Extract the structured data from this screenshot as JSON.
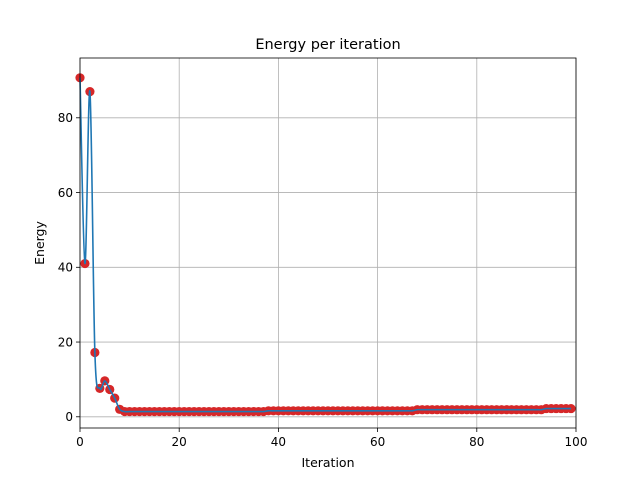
{
  "chart_data": {
    "type": "line",
    "title": "Energy per iteration",
    "xlabel": "Iteration",
    "ylabel": "Energy",
    "xlim": [
      0,
      100
    ],
    "ylim": [
      -3,
      96
    ],
    "xticks": [
      0,
      20,
      40,
      60,
      80,
      100
    ],
    "yticks": [
      0,
      20,
      40,
      60,
      80
    ],
    "grid": true,
    "line_color": "#1f77b4",
    "marker_color": "#d62728",
    "series": [
      {
        "x": [
          0,
          1,
          2,
          3,
          4,
          5,
          6,
          7,
          8,
          9,
          10,
          11,
          12,
          13,
          14,
          15,
          16,
          17,
          18,
          19,
          20,
          21,
          22,
          23,
          24,
          25,
          26,
          27,
          28,
          29,
          30,
          31,
          32,
          33,
          34,
          35,
          36,
          37,
          38,
          39,
          40,
          41,
          42,
          43,
          44,
          45,
          46,
          47,
          48,
          49,
          50,
          51,
          52,
          53,
          54,
          55,
          56,
          57,
          58,
          59,
          60,
          61,
          62,
          63,
          64,
          65,
          66,
          67,
          68,
          69,
          70,
          71,
          72,
          73,
          74,
          75,
          76,
          77,
          78,
          79,
          80,
          81,
          82,
          83,
          84,
          85,
          86,
          87,
          88,
          89,
          90,
          91,
          92,
          93,
          94,
          95,
          96,
          97,
          98,
          99
        ],
        "y": [
          90.7,
          41.0,
          87.0,
          17.2,
          7.6,
          9.6,
          7.3,
          5.0,
          2.0,
          1.4,
          1.4,
          1.4,
          1.4,
          1.4,
          1.4,
          1.4,
          1.4,
          1.4,
          1.4,
          1.4,
          1.4,
          1.4,
          1.4,
          1.4,
          1.4,
          1.4,
          1.4,
          1.4,
          1.4,
          1.4,
          1.4,
          1.4,
          1.4,
          1.4,
          1.4,
          1.4,
          1.4,
          1.4,
          1.6,
          1.6,
          1.6,
          1.6,
          1.6,
          1.6,
          1.6,
          1.6,
          1.6,
          1.6,
          1.6,
          1.6,
          1.6,
          1.6,
          1.6,
          1.6,
          1.6,
          1.6,
          1.6,
          1.6,
          1.6,
          1.6,
          1.6,
          1.6,
          1.6,
          1.6,
          1.6,
          1.6,
          1.6,
          1.6,
          1.9,
          1.9,
          1.9,
          1.9,
          1.9,
          1.9,
          1.9,
          1.9,
          1.9,
          1.9,
          1.9,
          1.9,
          1.9,
          1.9,
          1.9,
          1.9,
          1.9,
          1.9,
          1.9,
          1.9,
          1.9,
          1.9,
          1.9,
          1.9,
          1.9,
          1.9,
          2.2,
          2.2,
          2.2,
          2.2,
          2.2,
          2.2
        ]
      }
    ]
  }
}
